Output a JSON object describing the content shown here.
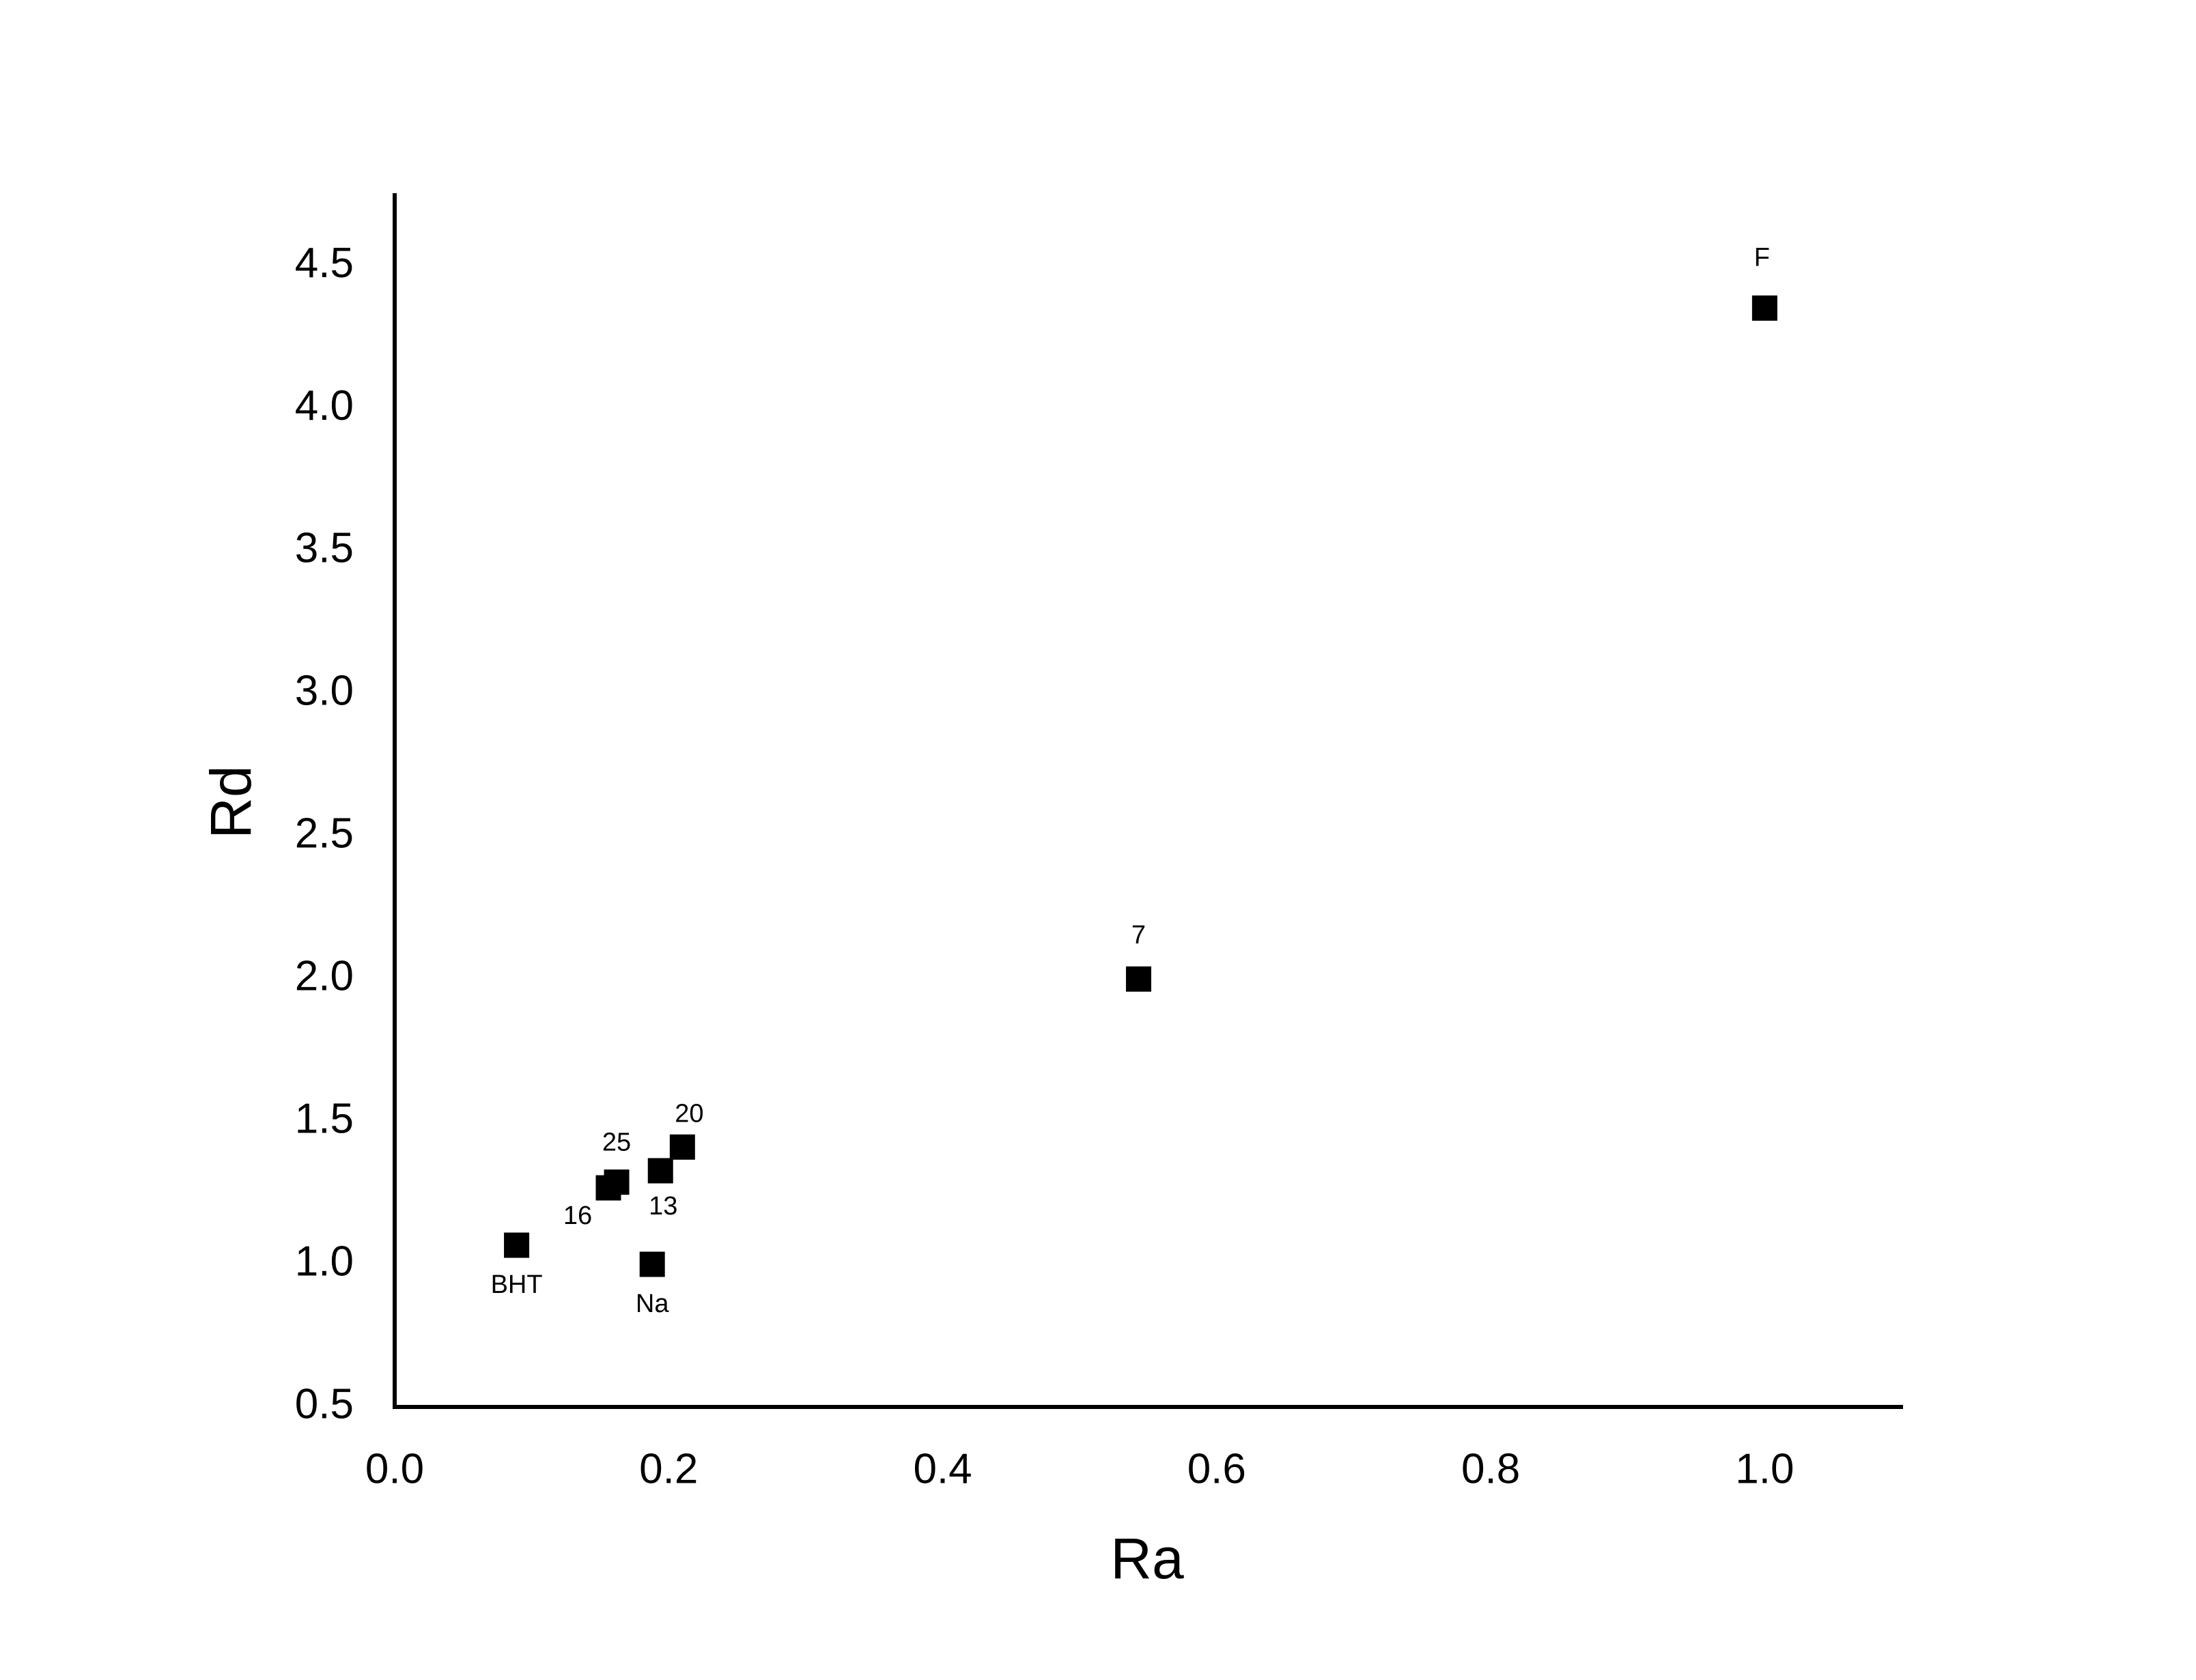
{
  "chart_data": {
    "type": "scatter",
    "x_label": "Ra",
    "y_label": "Rd",
    "x": [
      0.089,
      0.156,
      0.162,
      0.194,
      0.21,
      0.188,
      0.543,
      1.0
    ],
    "y": [
      1.067,
      1.268,
      1.288,
      1.328,
      1.411,
      1.0,
      2.0,
      4.352
    ],
    "labels": [
      "BHT",
      "16",
      "25",
      "13",
      "20",
      "Na",
      "7",
      "F"
    ],
    "color": "#000000",
    "marker": "square",
    "xlim": [
      0,
      1.1
    ],
    "xticks": [
      {
        "value": 0,
        "label": "0.0"
      },
      0.2,
      0.4,
      0.6,
      0.8,
      {
        "value": 1,
        "label": "1.0"
      }
    ],
    "ylim": [
      0.5,
      4.75
    ],
    "yticks": [
      0.5,
      {
        "value": 1,
        "label": "1.0"
      },
      1.5,
      {
        "value": 2,
        "label": "2.0"
      },
      2.5,
      {
        "value": 3,
        "label": "3.0"
      },
      3.5,
      {
        "value": 4,
        "label": "4.0"
      },
      4.5
    ],
    "grid": false
  }
}
